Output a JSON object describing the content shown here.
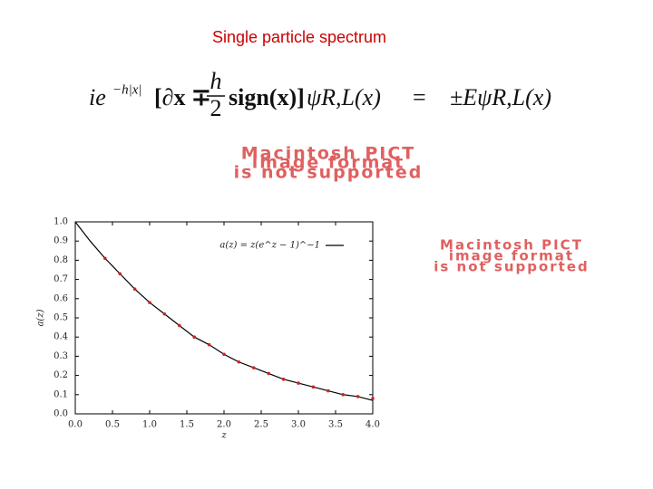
{
  "title": "Single particle spectrum",
  "equation": {
    "left": "ie",
    "exponent": "−h|x|",
    "operator": "[∂x ∓",
    "fraction_num": "h",
    "fraction_den": "2",
    "sign": "sign(x)]",
    "psi": "ψR,L(x)",
    "equals": "=",
    "right": "±EψR,L(x)"
  },
  "placeholders": [
    {
      "lines": [
        "Macintosh PICT",
        "image format",
        "is not supported"
      ]
    },
    {
      "lines": [
        "Macintosh PICT",
        "image format",
        "is not supported"
      ]
    }
  ],
  "chart_data": {
    "type": "line",
    "x_label": "z",
    "y_label": "a(z)",
    "x": [
      0,
      0.2,
      0.4,
      0.6,
      0.8,
      1.0,
      1.2,
      1.4,
      1.6,
      1.8,
      2.0,
      2.2,
      2.4,
      2.6,
      2.8,
      3.0,
      3.2,
      3.4,
      3.6,
      3.8,
      4.0
    ],
    "series": [
      {
        "name": "a(z) = z(e^z − 1)^−1",
        "color": "#000000",
        "style": "line",
        "values": [
          1.0,
          0.9,
          0.81,
          0.73,
          0.65,
          0.58,
          0.52,
          0.46,
          0.4,
          0.36,
          0.31,
          0.27,
          0.24,
          0.21,
          0.18,
          0.16,
          0.14,
          0.12,
          0.1,
          0.09,
          0.07
        ]
      },
      {
        "color": "#cc2222",
        "style": "dots",
        "values": [
          null,
          null,
          0.81,
          0.73,
          0.65,
          0.58,
          0.52,
          0.46,
          0.4,
          0.36,
          0.31,
          0.27,
          0.24,
          0.21,
          0.18,
          0.16,
          0.14,
          0.12,
          0.1,
          0.09,
          0.08
        ]
      }
    ],
    "xlim": [
      0,
      4
    ],
    "ylim": [
      0,
      1
    ],
    "xticks": [
      {
        "value": 0,
        "label": "0.0"
      },
      0.5,
      {
        "value": 1,
        "label": "1.0"
      },
      1.5,
      {
        "value": 2,
        "label": "2.0"
      },
      2.5,
      {
        "value": 3,
        "label": "3.0"
      },
      3.5,
      {
        "value": 4,
        "label": "4.0"
      }
    ],
    "yticks": [
      {
        "value": 0,
        "label": "0.0"
      },
      0.1,
      0.2,
      0.3,
      0.4,
      0.5,
      0.6,
      0.7,
      0.8,
      0.9,
      {
        "value": 1,
        "label": "1.0"
      }
    ],
    "legend": "upper right"
  }
}
